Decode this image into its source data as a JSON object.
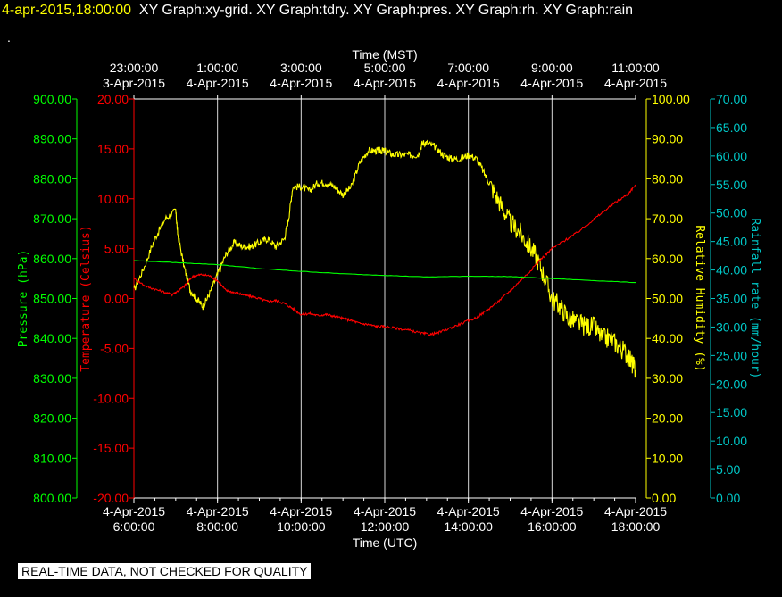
{
  "header": {
    "timestamp": "4-apr-2015,18:00:00",
    "graphs": "XY Graph:xy-grid.  XY Graph:tdry.  XY Graph:pres.  XY Graph:rh.  XY Graph:rain",
    "dot": "."
  },
  "notice": "REAL-TIME DATA, NOT CHECKED FOR QUALITY",
  "colors": {
    "pressure": "#00ff00",
    "temperature": "#ff0000",
    "humidity": "#ffff00",
    "rain": "#00c8c8",
    "grid": "#ffffff"
  },
  "chart_data": {
    "type": "line",
    "x_top": {
      "label": "Time (MST)",
      "ticks": [
        {
          "time": "23:00:00",
          "date": "3-Apr-2015"
        },
        {
          "time": "1:00:00",
          "date": "4-Apr-2015"
        },
        {
          "time": "3:00:00",
          "date": "4-Apr-2015"
        },
        {
          "time": "5:00:00",
          "date": "4-Apr-2015"
        },
        {
          "time": "7:00:00",
          "date": "4-Apr-2015"
        },
        {
          "time": "9:00:00",
          "date": "4-Apr-2015"
        },
        {
          "time": "11:00:00",
          "date": "4-Apr-2015"
        }
      ]
    },
    "x_bottom": {
      "label": "Time (UTC)",
      "range": [
        6,
        18
      ],
      "ticks": [
        {
          "value": 6,
          "date": "4-Apr-2015",
          "time": "6:00:00"
        },
        {
          "value": 8,
          "date": "4-Apr-2015",
          "time": "8:00:00"
        },
        {
          "value": 10,
          "date": "4-Apr-2015",
          "time": "10:00:00"
        },
        {
          "value": 12,
          "date": "4-Apr-2015",
          "time": "12:00:00"
        },
        {
          "value": 14,
          "date": "4-Apr-2015",
          "time": "14:00:00"
        },
        {
          "value": 16,
          "date": "4-Apr-2015",
          "time": "16:00:00"
        },
        {
          "value": 18,
          "date": "4-Apr-2015",
          "time": "18:00:00"
        }
      ]
    },
    "grid": "vertical",
    "axes": {
      "pressure": {
        "label": "Pressure (hPa)",
        "range": [
          800,
          900
        ],
        "ticks": [
          "900.00",
          "890.00",
          "880.00",
          "870.00",
          "860.00",
          "850.00",
          "840.00",
          "830.00",
          "820.00",
          "810.00",
          "800.00"
        ]
      },
      "temperature": {
        "label": "Temperature (Celsius)",
        "range": [
          -20,
          20
        ],
        "ticks": [
          "20.00",
          "15.00",
          "10.00",
          "5.00",
          "0.00",
          "-5.00",
          "-10.00",
          "-15.00",
          "-20.00"
        ]
      },
      "humidity": {
        "label": "Relative Humidity (%)",
        "range": [
          0,
          100
        ],
        "ticks": [
          "100.00",
          "90.00",
          "80.00",
          "70.00",
          "60.00",
          "50.00",
          "40.00",
          "30.00",
          "20.00",
          "10.00",
          "0.00"
        ]
      },
      "rain": {
        "label": "Rainfall rate (mm/hour)",
        "range": [
          0,
          70
        ],
        "ticks": [
          "70.00",
          "65.00",
          "60.00",
          "55.00",
          "50.00",
          "45.00",
          "40.00",
          "35.00",
          "30.00",
          "25.00",
          "20.00",
          "15.00",
          "10.00",
          "5.00",
          "0.00"
        ]
      }
    },
    "series": [
      {
        "axis": "humidity",
        "x": [
          6.0,
          6.25,
          6.5,
          6.75,
          7.0,
          7.05,
          7.2,
          7.35,
          7.5,
          7.65,
          7.8,
          8.0,
          8.2,
          8.4,
          8.6,
          8.8,
          9.0,
          9.2,
          9.4,
          9.6,
          9.7,
          9.8,
          10.0,
          10.2,
          10.4,
          10.6,
          10.8,
          11.0,
          11.2,
          11.4,
          11.6,
          11.8,
          11.9,
          12.0,
          12.2,
          12.4,
          12.6,
          12.8,
          12.9,
          13.0,
          13.2,
          13.4,
          13.6,
          13.8,
          14.0,
          14.2,
          14.4,
          14.6,
          14.8,
          15.0,
          15.2,
          15.4,
          15.6,
          15.8,
          16.0,
          16.2,
          16.4,
          16.6,
          16.8,
          17.0,
          17.2,
          17.4,
          17.6,
          17.8,
          17.9,
          18.0
        ],
        "y": [
          52,
          58,
          65,
          70,
          72,
          66,
          58,
          52,
          50,
          48,
          51,
          56,
          61,
          64,
          63,
          63,
          64,
          65,
          63,
          65,
          70,
          78,
          78,
          77,
          79,
          79,
          78,
          76,
          78,
          84,
          87,
          87,
          87,
          87,
          86,
          86,
          86,
          86,
          89,
          89,
          88,
          86,
          85,
          85,
          86,
          85,
          81,
          77,
          73,
          69,
          67,
          64,
          61,
          56,
          50,
          48,
          45,
          44,
          43,
          43,
          40,
          40,
          38,
          36,
          34,
          32
        ]
      },
      {
        "axis": "temperature",
        "x": [
          6.0,
          6.3,
          6.6,
          6.9,
          7.0,
          7.2,
          7.4,
          7.6,
          7.8,
          8.0,
          8.2,
          8.4,
          8.6,
          8.8,
          9.0,
          9.2,
          9.4,
          9.6,
          9.8,
          10.0,
          10.2,
          10.4,
          10.6,
          10.8,
          11.0,
          11.2,
          11.4,
          11.6,
          11.8,
          12.0,
          12.3,
          12.6,
          12.9,
          13.1,
          13.3,
          13.6,
          13.9,
          14.2,
          14.5,
          14.8,
          15.1,
          15.4,
          15.7,
          16.0,
          16.3,
          16.6,
          16.9,
          17.2,
          17.5,
          17.8,
          18.0
        ],
        "y": [
          2.0,
          1.2,
          0.8,
          0.4,
          0.6,
          1.2,
          2.2,
          2.4,
          2.3,
          1.8,
          0.8,
          0.6,
          0.4,
          0.2,
          0.0,
          -0.3,
          -0.2,
          -0.5,
          -1.0,
          -1.6,
          -1.5,
          -1.7,
          -1.6,
          -1.8,
          -2.0,
          -2.2,
          -2.5,
          -2.6,
          -2.8,
          -2.8,
          -3.0,
          -3.2,
          -3.5,
          -3.6,
          -3.4,
          -2.9,
          -2.4,
          -1.9,
          -1.0,
          0.0,
          1.2,
          2.4,
          3.8,
          5.0,
          5.8,
          6.6,
          7.6,
          8.6,
          9.6,
          10.4,
          11.4
        ]
      },
      {
        "axis": "pressure",
        "x": [
          6.0,
          7.0,
          8.0,
          9.0,
          10.0,
          11.0,
          12.0,
          13.0,
          14.0,
          15.0,
          16.0,
          17.0,
          18.0
        ],
        "y": [
          859.5,
          859.0,
          858.5,
          857.5,
          856.8,
          856.2,
          855.8,
          855.4,
          855.6,
          855.5,
          855.0,
          854.5,
          854.0
        ]
      }
    ]
  }
}
